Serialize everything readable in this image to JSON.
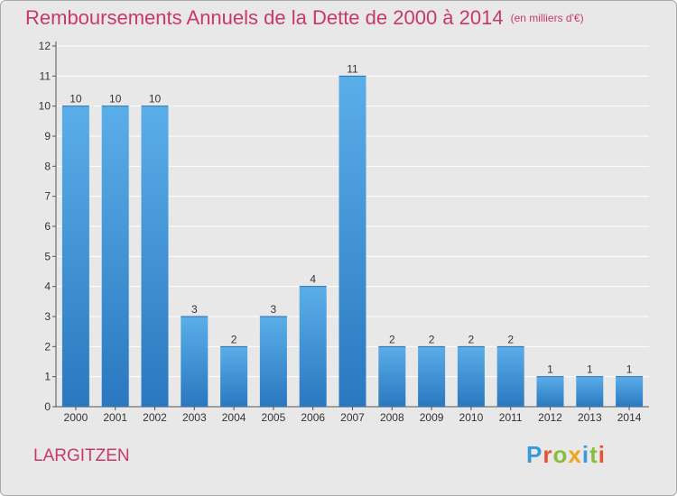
{
  "title": "Remboursements Annuels de la Dette de 2000 à 2014",
  "unit_note": "(en milliers d'€)",
  "location": "LARGITZEN",
  "logo_text": "Proxiti",
  "colors": {
    "title": "#c8386a",
    "bar": "#3a8fd8",
    "bar_light": "#5aaee8",
    "background": "#e8e8e8"
  },
  "chart_data": {
    "type": "bar",
    "title": "Remboursements Annuels de la Dette de 2000 à 2014",
    "categories": [
      "2000",
      "2001",
      "2002",
      "2003",
      "2004",
      "2005",
      "2006",
      "2007",
      "2008",
      "2009",
      "2010",
      "2011",
      "2012",
      "2013",
      "2014"
    ],
    "values": [
      10,
      10,
      10,
      3,
      2,
      3,
      4,
      11,
      2,
      2,
      2,
      2,
      1,
      1,
      1
    ],
    "ylim": [
      0,
      12
    ],
    "yticks": [
      "0",
      "1",
      "2",
      "3",
      "4",
      "5",
      "6",
      "7",
      "8",
      "9",
      "10",
      "11",
      "12"
    ],
    "grid": true
  }
}
